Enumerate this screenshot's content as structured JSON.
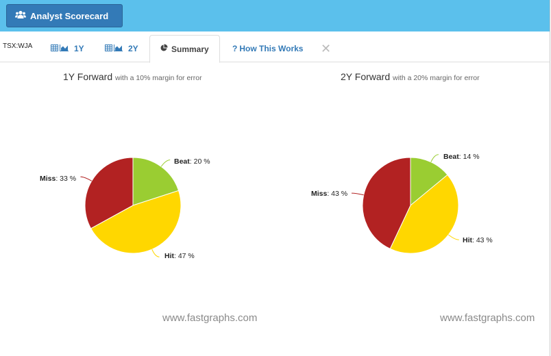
{
  "header": {
    "button_label": "Analyst Scorecard",
    "button_icon": "users-icon"
  },
  "tabs": {
    "ticker": "TSX:WJA",
    "items": [
      {
        "label": "1Y",
        "icons": [
          "table-icon",
          "area-chart-icon"
        ]
      },
      {
        "label": "2Y",
        "icons": [
          "table-icon",
          "area-chart-icon"
        ]
      },
      {
        "label": "Summary",
        "icons": [
          "pie-chart-icon"
        ],
        "active": true
      },
      {
        "label": "How This Works",
        "icons": [
          "question-icon"
        ]
      }
    ],
    "close_glyph": "✕"
  },
  "colors": {
    "beat": "#9acd32",
    "hit": "#ffd700",
    "miss": "#b22222",
    "topbar": "#5bc0ec",
    "button": "#337ab7"
  },
  "chart_data": [
    {
      "type": "pie",
      "title": "1Y Forward",
      "subtitle": "with a 10% margin for error",
      "slices": [
        {
          "name": "Beat",
          "value": 20,
          "display": ": 20 %"
        },
        {
          "name": "Hit",
          "value": 47,
          "display": ": 47 %"
        },
        {
          "name": "Miss",
          "value": 33,
          "display": ": 33 %"
        }
      ],
      "watermark": "www.fastgraphs.com"
    },
    {
      "type": "pie",
      "title": "2Y Forward",
      "subtitle": "with a 20% margin for error",
      "slices": [
        {
          "name": "Beat",
          "value": 14,
          "display": ": 14 %"
        },
        {
          "name": "Hit",
          "value": 43,
          "display": ": 43 %"
        },
        {
          "name": "Miss",
          "value": 43,
          "display": ": 43 %"
        }
      ],
      "watermark": "www.fastgraphs.com"
    }
  ]
}
